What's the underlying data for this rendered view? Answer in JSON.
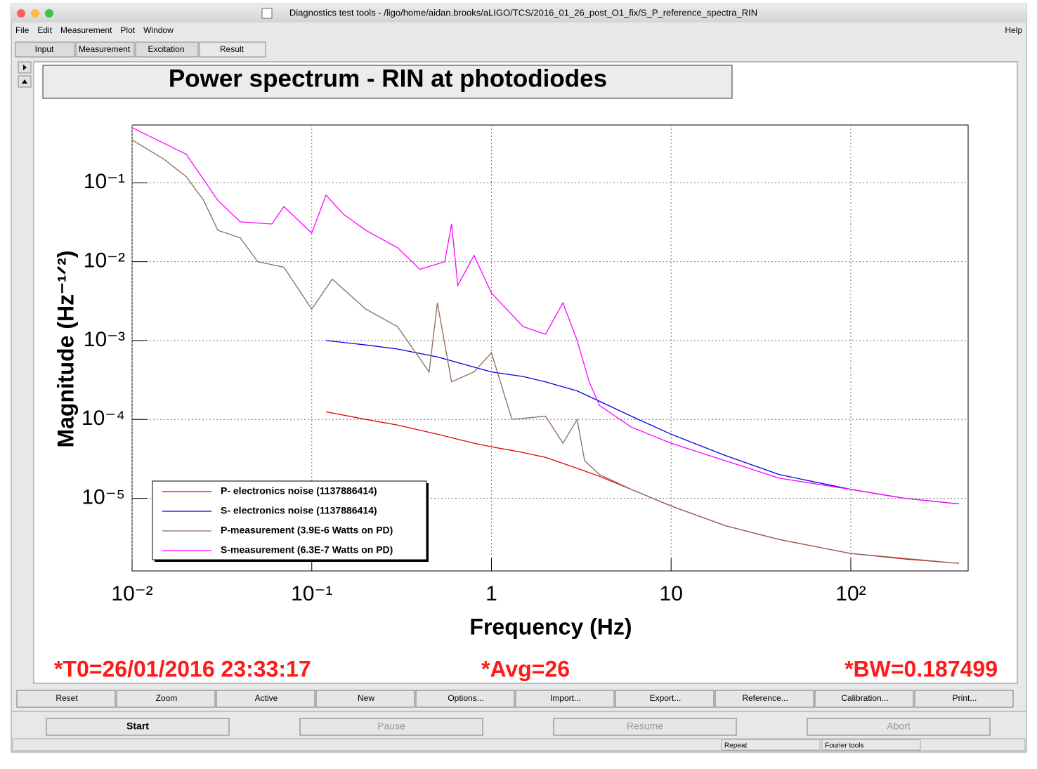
{
  "window": {
    "title": "Diagnostics test tools - /ligo/home/aidan.brooks/aLIGO/TCS/2016_01_26_post_O1_fix/S_P_reference_spectra_RIN"
  },
  "menu": [
    "File",
    "Edit",
    "Measurement",
    "Plot",
    "Window"
  ],
  "help": "Help",
  "tabs": [
    "Input",
    "Measurement",
    "Excitation",
    "Result"
  ],
  "chart_data": {
    "type": "line",
    "title": "Power spectrum - RIN at photodiodes",
    "x_label": "Frequency (Hz)",
    "y_label": "Magnitude (Hz⁻¹ᐟ²)",
    "log_x": true,
    "log_y": true,
    "grid": true,
    "legend": "lower-left",
    "xlim": [
      0.01,
      450
    ],
    "ylim": [
      1.2e-06,
      0.54
    ],
    "xticks": [
      {
        "value": 0.01,
        "label": "10⁻²"
      },
      {
        "value": 0.1,
        "label": "10⁻¹"
      },
      1,
      10,
      {
        "value": 100,
        "label": "10²"
      }
    ],
    "yticks": [
      {
        "value": 1e-05,
        "label": "10⁻⁵"
      },
      {
        "value": 0.0001,
        "label": "10⁻⁴"
      },
      {
        "value": 0.001,
        "label": "10⁻³"
      },
      {
        "value": 0.01,
        "label": "10⁻²"
      },
      {
        "value": 0.1,
        "label": "10⁻¹"
      }
    ],
    "series": [
      {
        "name": "P- electronics noise (1137886414)",
        "color": "#e00000",
        "x": [
          0.12,
          0.2,
          0.3,
          0.5,
          0.8,
          1,
          1.5,
          2,
          3,
          4,
          6,
          10,
          20,
          40,
          100,
          200,
          400
        ],
        "values": [
          0.000125,
          0.0001,
          8.5e-05,
          6.5e-05,
          5e-05,
          4.5e-05,
          3.8e-05,
          3.3e-05,
          2.4e-05,
          1.9e-05,
          1.3e-05,
          8e-06,
          4.5e-06,
          3e-06,
          2e-06,
          1.7e-06,
          1.5e-06
        ]
      },
      {
        "name": "S- electronics noise (1137886414)",
        "color": "#0000e0",
        "x": [
          0.12,
          0.2,
          0.3,
          0.5,
          0.8,
          1,
          1.5,
          2,
          3,
          4,
          6,
          10,
          20,
          40,
          100,
          200,
          400
        ],
        "values": [
          0.001,
          0.00088,
          0.00078,
          0.00062,
          0.00046,
          0.0004,
          0.00035,
          0.0003,
          0.00023,
          0.00017,
          0.00011,
          6.5e-05,
          3.5e-05,
          2e-05,
          1.3e-05,
          1e-05,
          8.5e-06
        ]
      },
      {
        "name": "P-measurement (3.9E-6 Watts on PD)",
        "color": "#8b6a5a",
        "x": [
          0.01,
          0.015,
          0.02,
          0.025,
          0.03,
          0.04,
          0.05,
          0.07,
          0.1,
          0.13,
          0.2,
          0.3,
          0.45,
          0.5,
          0.6,
          0.8,
          1,
          1.3,
          2,
          2.5,
          3,
          3.3,
          4,
          6,
          10,
          20,
          40,
          100,
          400
        ],
        "values": [
          0.35,
          0.2,
          0.12,
          0.06,
          0.025,
          0.02,
          0.01,
          0.0085,
          0.0025,
          0.006,
          0.0025,
          0.0015,
          0.0004,
          0.003,
          0.0003,
          0.0004,
          0.0007,
          0.0001,
          0.00011,
          5e-05,
          0.0001,
          3e-05,
          2e-05,
          1.3e-05,
          8e-06,
          4.5e-06,
          3e-06,
          2e-06,
          1.5e-06
        ]
      },
      {
        "name": "S-measurement (6.3E-7 Watts on PD)",
        "color": "#ff00ff",
        "x": [
          0.01,
          0.02,
          0.03,
          0.04,
          0.06,
          0.07,
          0.1,
          0.12,
          0.15,
          0.2,
          0.3,
          0.4,
          0.55,
          0.6,
          0.65,
          0.8,
          1,
          1.5,
          2,
          2.5,
          3,
          3.5,
          4,
          6,
          10,
          20,
          40,
          100,
          200,
          400
        ],
        "values": [
          0.5,
          0.23,
          0.06,
          0.032,
          0.03,
          0.05,
          0.023,
          0.07,
          0.04,
          0.025,
          0.015,
          0.008,
          0.01,
          0.03,
          0.005,
          0.012,
          0.004,
          0.0015,
          0.0012,
          0.003,
          0.001,
          0.0003,
          0.00015,
          8e-05,
          5e-05,
          3e-05,
          1.8e-05,
          1.3e-05,
          1e-05,
          8.5e-06
        ]
      }
    ],
    "annotations": [
      "*T0=26/01/2016 23:33:17",
      "*Avg=26",
      "*BW=0.187499"
    ]
  },
  "toolbar": [
    "Reset",
    "Zoom",
    "Active",
    "New",
    "Options...",
    "Import...",
    "Export...",
    "Reference...",
    "Calibration...",
    "Print..."
  ],
  "controls": [
    "Start",
    "Pause",
    "Resume",
    "Abort"
  ],
  "status": [
    "Repeat",
    "Fourier tools"
  ]
}
